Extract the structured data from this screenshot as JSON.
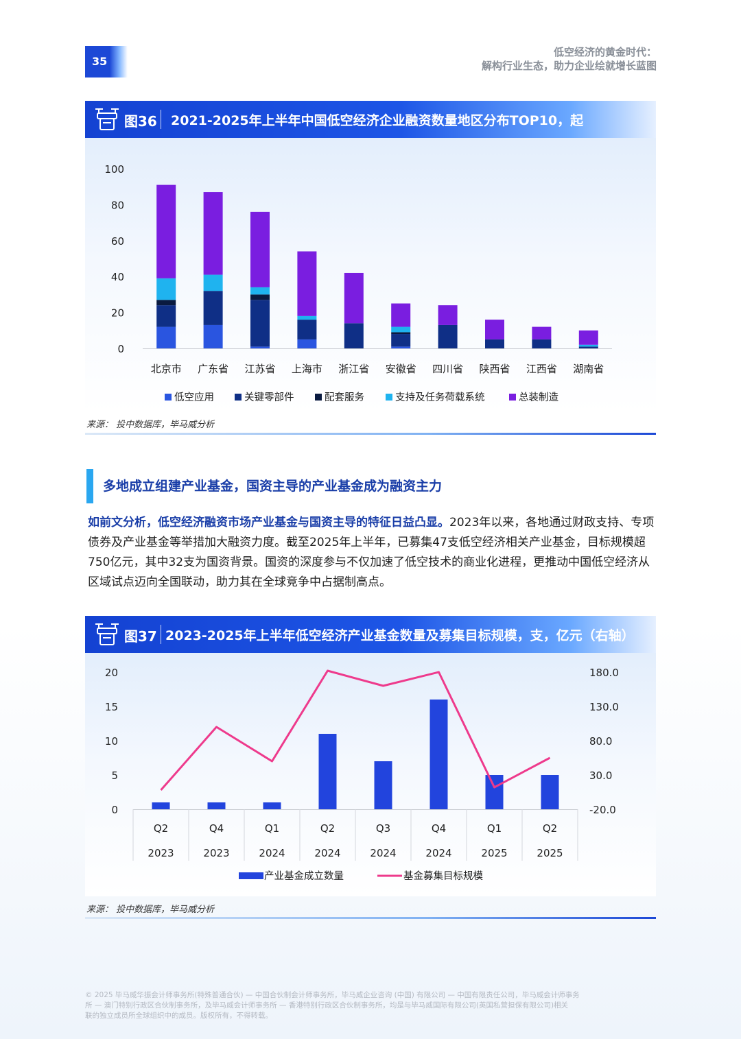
{
  "page": {
    "number": "35",
    "header_line1": "低空经济的黄金时代：",
    "header_line2": "解构行业生态，助力企业绘就增长蓝图"
  },
  "fig36": {
    "num": "图36",
    "title": "2021-2025年上半年中国低空经济企业融资数量地区分布TOP10，起",
    "source": "来源：  投中数据库，毕马威分析"
  },
  "section": {
    "title": "多地成立组建产业基金，国资主导的产业基金成为融资主力"
  },
  "body": {
    "lead": "如前文分析，低空经济融资市场产业基金与国资主导的特征日益凸显。",
    "text": "2023年以来，各地通过财政支持、专项债券及产业基金等举措加大融资力度。截至2025年上半年，已募集47支低空经济相关产业基金，目标规模超750亿元，其中32支为国资背景。国资的深度参与不仅加速了低空技术的商业化进程，更推动中国低空经济从区域试点迈向全国联动，助力其在全球竞争中占据制高点。"
  },
  "fig37": {
    "num": "图37",
    "title": "2023-2025年上半年低空经济产业基金数量及募集目标规模，支，亿元（右轴）",
    "source": "来源：  投中数据库，毕马威分析"
  },
  "footer": {
    "line1": "© 2025 毕马威华振会计师事务所(特殊普通合伙) — 中国合伙制会计师事务所，毕马威企业咨询 (中国) 有限公司 — 中国有限责任公司，毕马威会计师事务",
    "line2": "所 — 澳门特别行政区合伙制事务所，及毕马威会计师事务所 — 香港特别行政区合伙制事务所，均是与毕马威国际有限公司(英国私营担保有限公司)相关",
    "line3": "联的独立成员所全球组织中的成员。版权所有，不得转载。"
  },
  "chart_data": [
    {
      "type": "bar",
      "stacked": true,
      "title": "2021-2025年上半年中国低空经济企业融资数量地区分布TOP10，起",
      "categories": [
        "北京市",
        "广东省",
        "江苏省",
        "上海市",
        "浙江省",
        "安徽省",
        "四川省",
        "陕西省",
        "江西省",
        "湖南省"
      ],
      "ylim": [
        0,
        100
      ],
      "yticks": [
        "0",
        "20",
        "40",
        "60",
        "80",
        "100"
      ],
      "legend_position": "bottom",
      "series": [
        {
          "name": "低空应用",
          "color": "#2a55e0",
          "values": [
            12,
            13,
            1,
            5,
            0,
            1,
            0,
            0,
            0,
            0
          ]
        },
        {
          "name": "关键零部件",
          "color": "#0f2f86",
          "values": [
            12,
            19,
            26,
            11,
            14,
            7,
            13,
            5,
            5,
            1
          ]
        },
        {
          "name": "配套服务",
          "color": "#0a1a40",
          "values": [
            3,
            0,
            3,
            0,
            0,
            1,
            0,
            0,
            0,
            0
          ]
        },
        {
          "name": "支持及任务荷载系统",
          "color": "#1fb3ef",
          "values": [
            12,
            9,
            4,
            2,
            0,
            3,
            0,
            0,
            0,
            1
          ]
        },
        {
          "name": "总装制造",
          "color": "#7a1ee0",
          "values": [
            52,
            46,
            42,
            36,
            28,
            13,
            11,
            11,
            7,
            8
          ]
        }
      ]
    },
    {
      "type": "bar+line",
      "title": "2023-2025年上半年低空经济产业基金数量及募集目标规模，支，亿元（右轴）",
      "categories": [
        [
          "Q2",
          "2023"
        ],
        [
          "Q4",
          "2023"
        ],
        [
          "Q1",
          "2024"
        ],
        [
          "Q2",
          "2024"
        ],
        [
          "Q3",
          "2024"
        ],
        [
          "Q4",
          "2024"
        ],
        [
          "Q1",
          "2025"
        ],
        [
          "Q2",
          "2025"
        ]
      ],
      "ylim": [
        0,
        20
      ],
      "yticks": [
        "0",
        "5",
        "10",
        "15",
        "20"
      ],
      "y2lim": [
        -20,
        180
      ],
      "y2ticks": [
        "-20.0",
        "30.0",
        "80.0",
        "130.0",
        "180.0"
      ],
      "legend_position": "bottom",
      "series": [
        {
          "name": "产业基金成立数量",
          "type": "bar",
          "axis": "left",
          "color": "#2244dd",
          "values": [
            1,
            1,
            1,
            11,
            7,
            16,
            5,
            5
          ]
        },
        {
          "name": "基金募集目标规模",
          "type": "line",
          "axis": "right",
          "color": "#ee3a8c",
          "values": [
            8,
            100,
            50,
            182,
            160,
            180,
            12,
            55
          ]
        }
      ]
    }
  ]
}
